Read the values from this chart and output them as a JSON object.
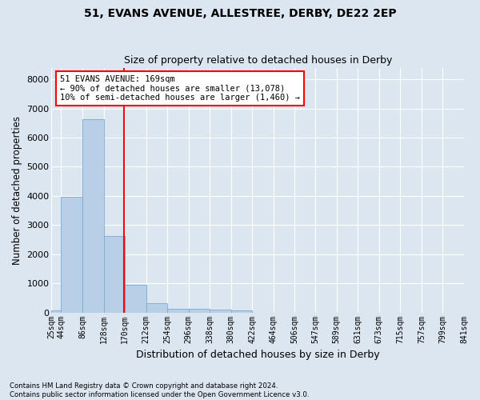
{
  "title": "51, EVANS AVENUE, ALLESTREE, DERBY, DE22 2EP",
  "subtitle": "Size of property relative to detached houses in Derby",
  "xlabel": "Distribution of detached houses by size in Derby",
  "ylabel": "Number of detached properties",
  "bar_color": "#b8cfe8",
  "bar_edge_color": "#7aaad0",
  "background_color": "#dce6f0",
  "grid_color": "#ffffff",
  "bin_edges": [
    25,
    44,
    86,
    128,
    170,
    212,
    254,
    296,
    338,
    380,
    422,
    464,
    506,
    547,
    589,
    631,
    673,
    715,
    757,
    799,
    841
  ],
  "values": [
    75,
    3980,
    6620,
    2620,
    950,
    310,
    130,
    120,
    100,
    60,
    0,
    0,
    0,
    0,
    0,
    0,
    0,
    0,
    0,
    0
  ],
  "ylim": [
    0,
    8400
  ],
  "yticks": [
    0,
    1000,
    2000,
    3000,
    4000,
    5000,
    6000,
    7000,
    8000
  ],
  "red_line_index": 4,
  "red_line_value": 169,
  "annotation_title": "51 EVANS AVENUE: 169sqm",
  "annotation_line2": "← 90% of detached houses are smaller (13,078)",
  "annotation_line3": "10% of semi-detached houses are larger (1,460) →",
  "footnote1": "Contains HM Land Registry data © Crown copyright and database right 2024.",
  "footnote2": "Contains public sector information licensed under the Open Government Licence v3.0.",
  "fig_bg": "#dce6f0"
}
